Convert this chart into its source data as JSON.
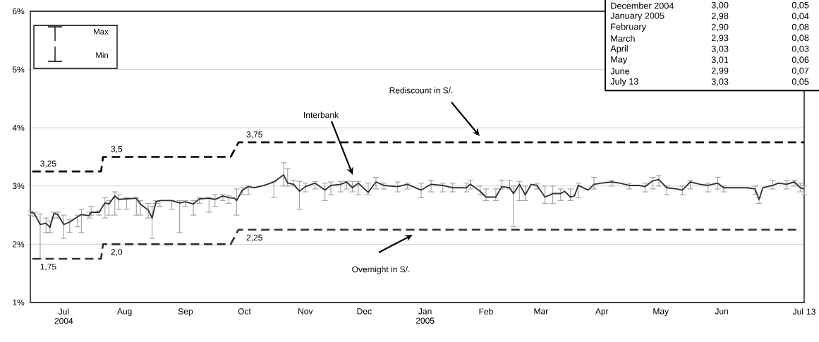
{
  "chart_data": {
    "type": "line",
    "xlim": [
      "2004-06-14",
      "2005-07-13"
    ],
    "ylim": [
      1,
      6
    ],
    "xticks": [
      {
        "value": "2004-07-01",
        "label": "Jul 2004"
      },
      {
        "value": "2004-08-01",
        "label": "Aug"
      },
      {
        "value": "2004-09-01",
        "label": "Sep"
      },
      {
        "value": "2004-10-01",
        "label": "Oct"
      },
      {
        "value": "2004-11-01",
        "label": "Nov"
      },
      {
        "value": "2004-12-01",
        "label": "Dec"
      },
      {
        "value": "2005-01-01",
        "label": "Jan 2005"
      },
      {
        "value": "2005-02-01",
        "label": "Feb"
      },
      {
        "value": "2005-03-01",
        "label": "Mar"
      },
      {
        "value": "2005-04-01",
        "label": "Apr"
      },
      {
        "value": "2005-05-01",
        "label": "May"
      },
      {
        "value": "2005-06-01",
        "label": "Jun"
      },
      {
        "value": "2005-07-13",
        "label": "Jul 13"
      }
    ],
    "yticks": [
      {
        "value": 1,
        "label": "1%"
      },
      {
        "value": 2,
        "label": "2%"
      },
      {
        "value": 3,
        "label": "3%"
      },
      {
        "value": 4,
        "label": "4%"
      },
      {
        "value": 5,
        "label": "5%"
      },
      {
        "value": 6,
        "label": "6%"
      }
    ],
    "grid": "y",
    "series": [
      {
        "color": "#333333",
        "line_style": "solid",
        "x": [
          "2004-06-14",
          "2004-06-16",
          "2004-06-19",
          "2004-06-22",
          "2004-06-24",
          "2004-06-26",
          "2004-06-28",
          "2004-07-01",
          "2004-07-04",
          "2004-07-08",
          "2004-07-10",
          "2004-07-14",
          "2004-07-15",
          "2004-07-19",
          "2004-07-22",
          "2004-07-24",
          "2004-07-27",
          "2004-07-29",
          "2004-08-02",
          "2004-08-07",
          "2004-08-09",
          "2004-08-13",
          "2004-08-15",
          "2004-08-17",
          "2004-08-19",
          "2004-08-25",
          "2004-08-29",
          "2004-09-01",
          "2004-09-05",
          "2004-09-08",
          "2004-09-13",
          "2004-09-16",
          "2004-09-20",
          "2004-09-23",
          "2004-09-26",
          "2004-09-27",
          "2004-09-30",
          "2004-10-03",
          "2004-10-06",
          "2004-10-11",
          "2004-10-16",
          "2004-10-21",
          "2004-10-23",
          "2004-10-26",
          "2004-10-29",
          "2004-11-01",
          "2004-11-06",
          "2004-11-11",
          "2004-11-14",
          "2004-11-19",
          "2004-11-22",
          "2004-11-25",
          "2004-11-28",
          "2004-12-03",
          "2004-12-07",
          "2004-12-11",
          "2004-12-18",
          "2004-12-23",
          "2004-12-30",
          "2005-01-04",
          "2005-01-10",
          "2005-01-15",
          "2005-01-22",
          "2005-01-24",
          "2005-01-29",
          "2005-02-01",
          "2005-02-06",
          "2005-02-09",
          "2005-02-13",
          "2005-02-15",
          "2005-02-18",
          "2005-02-21",
          "2005-02-24",
          "2005-02-27",
          "2005-03-03",
          "2005-03-07",
          "2005-03-11",
          "2005-03-13",
          "2005-03-16",
          "2005-03-18",
          "2005-03-20",
          "2005-03-25",
          "2005-03-28",
          "2005-04-01",
          "2005-04-06",
          "2005-04-10",
          "2005-04-15",
          "2005-04-20",
          "2005-04-23",
          "2005-04-27",
          "2005-04-30",
          "2005-05-04",
          "2005-05-09",
          "2005-05-12",
          "2005-05-16",
          "2005-05-21",
          "2005-05-25",
          "2005-05-30",
          "2005-06-02",
          "2005-06-08",
          "2005-06-14",
          "2005-06-18",
          "2005-06-20",
          "2005-06-22",
          "2005-06-27",
          "2005-06-30",
          "2005-07-04",
          "2005-07-08",
          "2005-07-11",
          "2005-07-13"
        ],
        "values": [
          2.55,
          2.53,
          2.34,
          2.36,
          2.29,
          2.53,
          2.51,
          2.34,
          2.38,
          2.47,
          2.51,
          2.49,
          2.55,
          2.55,
          2.71,
          2.69,
          2.83,
          2.77,
          2.78,
          2.79,
          2.69,
          2.59,
          2.45,
          2.73,
          2.75,
          2.75,
          2.71,
          2.73,
          2.69,
          2.78,
          2.79,
          2.77,
          2.83,
          2.8,
          2.79,
          2.75,
          2.93,
          2.99,
          2.97,
          3.01,
          3.07,
          3.19,
          3.05,
          3.03,
          2.91,
          2.99,
          3.05,
          2.93,
          3.01,
          3.03,
          3.07,
          2.97,
          3.05,
          2.89,
          3.07,
          3.01,
          2.99,
          3.03,
          2.93,
          3.03,
          3.01,
          2.97,
          2.97,
          3.03,
          2.91,
          2.81,
          2.81,
          2.99,
          2.97,
          2.87,
          3.03,
          2.85,
          3.03,
          3.01,
          2.81,
          2.87,
          2.87,
          2.91,
          2.81,
          2.83,
          3.01,
          2.93,
          3.03,
          3.05,
          3.07,
          3.05,
          3.01,
          3.01,
          2.99,
          3.09,
          3.11,
          2.97,
          2.95,
          2.93,
          3.07,
          3.03,
          3.01,
          3.05,
          2.97,
          2.97,
          2.97,
          2.95,
          2.77,
          2.97,
          3.01,
          3.05,
          3.03,
          3.07,
          2.97,
          2.95
        ],
        "errors": [
          [
            2.5,
            2.57
          ],
          [
            2.48,
            2.55
          ],
          [
            1.75,
            2.52
          ],
          [
            2.2,
            2.45
          ],
          [
            2.2,
            2.4
          ],
          [
            2.45,
            2.55
          ],
          [
            2.45,
            2.55
          ],
          [
            2.1,
            2.5
          ],
          [
            2.2,
            2.42
          ],
          [
            2.3,
            2.5
          ],
          [
            2.2,
            2.6
          ],
          [
            2.45,
            2.55
          ],
          [
            2.5,
            2.65
          ],
          [
            2.5,
            2.57
          ],
          [
            2.45,
            2.8
          ],
          [
            2.5,
            2.75
          ],
          [
            2.5,
            2.9
          ],
          [
            2.6,
            2.85
          ],
          [
            2.6,
            2.8
          ],
          [
            2.5,
            2.8
          ],
          [
            2.5,
            2.75
          ],
          [
            2.45,
            2.7
          ],
          [
            2.1,
            2.65
          ],
          [
            2.7,
            2.75
          ],
          [
            2.65,
            2.75
          ],
          [
            2.6,
            2.75
          ],
          [
            2.2,
            2.75
          ],
          [
            2.65,
            2.75
          ],
          [
            2.5,
            2.75
          ],
          [
            2.7,
            2.8
          ],
          [
            2.55,
            2.8
          ],
          [
            2.65,
            2.85
          ],
          [
            2.75,
            2.85
          ],
          [
            2.7,
            2.83
          ],
          null,
          [
            2.5,
            2.95
          ],
          [
            2.85,
            2.97
          ],
          [
            2.85,
            3.0
          ],
          null,
          null,
          [
            2.8,
            3.08
          ],
          [
            3.0,
            3.4
          ],
          [
            3.0,
            3.3
          ],
          [
            3.0,
            3.1
          ],
          [
            2.6,
            3.08
          ],
          [
            2.9,
            3.05
          ],
          [
            2.95,
            3.08
          ],
          [
            2.75,
            3.05
          ],
          [
            2.85,
            3.07
          ],
          [
            2.9,
            3.08
          ],
          [
            2.95,
            3.08
          ],
          [
            2.9,
            3.08
          ],
          [
            2.85,
            3.08
          ],
          [
            2.85,
            3.05
          ],
          [
            2.95,
            3.15
          ],
          [
            2.95,
            3.05
          ],
          [
            2.9,
            3.07
          ],
          [
            2.95,
            3.05
          ],
          [
            2.8,
            3.05
          ],
          [
            2.9,
            3.1
          ],
          [
            2.9,
            3.05
          ],
          [
            2.9,
            3.05
          ],
          [
            2.9,
            3.05
          ],
          [
            2.95,
            3.1
          ],
          [
            2.85,
            3.0
          ],
          [
            2.75,
            2.95
          ],
          [
            2.75,
            2.95
          ],
          [
            2.95,
            3.1
          ],
          [
            2.95,
            3.1
          ],
          [
            2.3,
            3.0
          ],
          [
            2.75,
            3.08
          ],
          [
            2.75,
            3.0
          ],
          null,
          [
            2.95,
            3.05
          ],
          [
            2.7,
            3.0
          ],
          [
            2.7,
            3.0
          ],
          [
            2.75,
            2.95
          ],
          null,
          [
            2.75,
            2.95
          ],
          null,
          [
            2.8,
            3.05
          ],
          null,
          [
            2.95,
            3.15
          ],
          null,
          [
            3.0,
            3.1
          ],
          null,
          [
            2.95,
            3.05
          ],
          null,
          [
            2.9,
            3.05
          ],
          [
            2.95,
            3.15
          ],
          [
            3.0,
            3.18
          ],
          [
            2.85,
            3.0
          ],
          null,
          [
            2.85,
            3.0
          ],
          [
            2.95,
            3.1
          ],
          null,
          [
            2.9,
            3.05
          ],
          [
            2.95,
            3.15
          ],
          [
            2.9,
            3.0
          ],
          null,
          null,
          [
            2.85,
            3.0
          ],
          [
            2.7,
            2.8
          ],
          null,
          [
            2.95,
            3.1
          ],
          null,
          [
            2.95,
            3.1
          ],
          [
            3.0,
            3.1
          ],
          [
            2.9,
            3.05
          ],
          [
            2.85,
            3.0
          ]
        ]
      },
      {
        "color": "#000000",
        "line_style": "dashed",
        "x": [
          "2004-06-15",
          "2004-07-20",
          "2004-07-21",
          "2004-09-24",
          "2004-09-28",
          "2005-07-13"
        ],
        "values": [
          3.25,
          3.25,
          3.5,
          3.5,
          3.75,
          3.75
        ],
        "value_labels": [
          "3,25",
          null,
          "3,5",
          null,
          "3,75",
          null
        ]
      },
      {
        "color": "#333333",
        "line_style": "dashed",
        "x": [
          "2004-06-15",
          "2004-07-20",
          "2004-07-21",
          "2004-09-24",
          "2004-09-28",
          "2005-07-09"
        ],
        "values": [
          1.75,
          1.75,
          2.0,
          2.0,
          2.25,
          2.25
        ],
        "value_labels": [
          "1,75",
          null,
          "2,0",
          null,
          "2,25",
          null
        ]
      }
    ],
    "annotations": [
      "Interbank",
      "Rediscount in S/.",
      "Overnight in S/.",
      "Max",
      "Min",
      "December 2004",
      "3,00",
      "0,05",
      "January 2005",
      "2,98",
      "0,04",
      "February",
      "2,90",
      "0,08",
      "March",
      "2,93",
      "0,08",
      "April",
      "3,03",
      "0,03",
      "May",
      "3,01",
      "0,06",
      "June",
      "2,99",
      "0,07",
      "July 13",
      "3,03",
      "0,05"
    ]
  }
}
